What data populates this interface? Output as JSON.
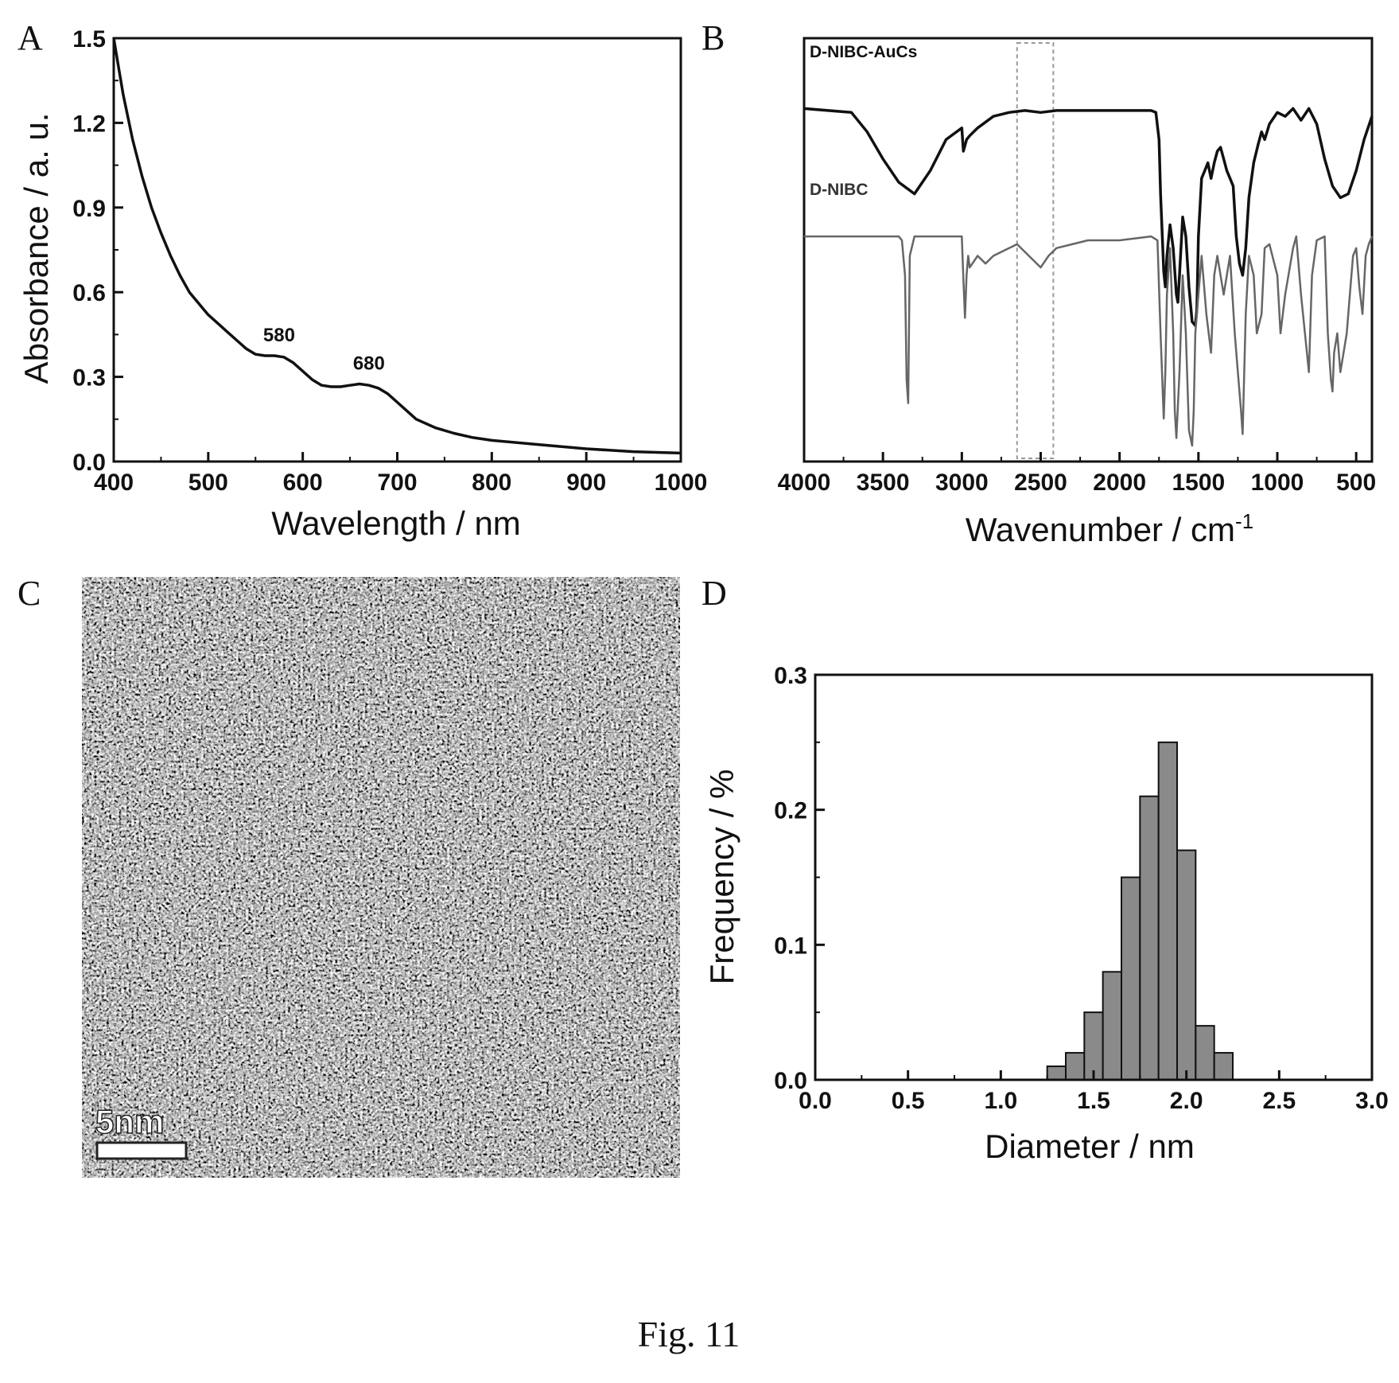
{
  "caption": "Fig. 11",
  "chart_data": [
    {
      "panel": "A",
      "type": "line",
      "xlabel": "Wavelength / nm",
      "ylabel": "Absorbance / a. u.",
      "xlim": [
        400,
        1000
      ],
      "ylim": [
        0.0,
        1.5
      ],
      "xticks": [
        400,
        500,
        600,
        700,
        800,
        900,
        1000
      ],
      "yticks": [
        0.0,
        0.3,
        0.6,
        0.9,
        1.2,
        1.5
      ],
      "ytick_labels": [
        "0.0",
        "0.3",
        "0.6",
        "0.9",
        "1.2",
        "1.5"
      ],
      "grid": false,
      "annotations": [
        {
          "text": "580",
          "x": 575,
          "y": 0.38
        },
        {
          "text": "680",
          "x": 670,
          "y": 0.28
        }
      ],
      "series": [
        {
          "x": [
            400,
            405,
            410,
            420,
            430,
            440,
            450,
            460,
            470,
            480,
            490,
            500,
            510,
            520,
            530,
            540,
            550,
            560,
            570,
            580,
            590,
            600,
            610,
            620,
            630,
            640,
            650,
            660,
            670,
            680,
            690,
            700,
            710,
            720,
            740,
            760,
            780,
            800,
            850,
            900,
            950,
            1000
          ],
          "y": [
            1.5,
            1.4,
            1.3,
            1.14,
            1.01,
            0.9,
            0.81,
            0.73,
            0.66,
            0.6,
            0.56,
            0.52,
            0.49,
            0.46,
            0.43,
            0.4,
            0.38,
            0.375,
            0.375,
            0.37,
            0.35,
            0.32,
            0.29,
            0.27,
            0.265,
            0.265,
            0.27,
            0.275,
            0.27,
            0.26,
            0.24,
            0.21,
            0.18,
            0.15,
            0.12,
            0.1,
            0.085,
            0.075,
            0.06,
            0.045,
            0.035,
            0.03
          ]
        }
      ]
    },
    {
      "panel": "B",
      "type": "line",
      "xlabel": "Wavenumber / cm",
      "xlabel_sup": "-1",
      "xlim": [
        4000,
        400
      ],
      "xticks": [
        4000,
        3500,
        3000,
        2500,
        2000,
        1500,
        1000,
        500
      ],
      "grid": false,
      "highlight_region": [
        2650,
        2420
      ],
      "series": [
        {
          "name": "D-NIBC-AuCs",
          "color": "#111111",
          "x": [
            4000,
            3700,
            3600,
            3500,
            3400,
            3300,
            3200,
            3100,
            3000,
            2990,
            2970,
            2950,
            2900,
            2800,
            2700,
            2600,
            2500,
            2400,
            2000,
            1800,
            1770,
            1750,
            1740,
            1720,
            1710,
            1700,
            1680,
            1660,
            1640,
            1630,
            1620,
            1600,
            1580,
            1560,
            1540,
            1520,
            1510,
            1500,
            1480,
            1460,
            1440,
            1420,
            1400,
            1380,
            1360,
            1340,
            1320,
            1300,
            1280,
            1260,
            1240,
            1220,
            1200,
            1180,
            1150,
            1120,
            1100,
            1080,
            1050,
            1000,
            950,
            900,
            850,
            800,
            750,
            700,
            650,
            600,
            550,
            500,
            450,
            400
          ],
          "y": [
            0.88,
            0.87,
            0.82,
            0.75,
            0.69,
            0.66,
            0.72,
            0.8,
            0.83,
            0.77,
            0.8,
            0.81,
            0.83,
            0.86,
            0.87,
            0.875,
            0.87,
            0.875,
            0.875,
            0.875,
            0.87,
            0.8,
            0.66,
            0.46,
            0.42,
            0.5,
            0.58,
            0.52,
            0.4,
            0.38,
            0.45,
            0.6,
            0.55,
            0.42,
            0.33,
            0.32,
            0.36,
            0.55,
            0.7,
            0.72,
            0.74,
            0.7,
            0.74,
            0.77,
            0.78,
            0.75,
            0.72,
            0.7,
            0.68,
            0.55,
            0.48,
            0.45,
            0.52,
            0.65,
            0.74,
            0.79,
            0.82,
            0.8,
            0.84,
            0.87,
            0.86,
            0.88,
            0.85,
            0.88,
            0.84,
            0.75,
            0.68,
            0.65,
            0.66,
            0.72,
            0.8,
            0.86
          ]
        },
        {
          "name": "D-NIBC",
          "color": "#666666",
          "x": [
            4000,
            3700,
            3500,
            3400,
            3380,
            3360,
            3350,
            3340,
            3330,
            3300,
            3100,
            3000,
            2990,
            2980,
            2970,
            2960,
            2950,
            2900,
            2850,
            2800,
            2750,
            2700,
            2650,
            2600,
            2550,
            2500,
            2450,
            2400,
            2300,
            2200,
            2000,
            1800,
            1760,
            1740,
            1720,
            1710,
            1700,
            1680,
            1660,
            1650,
            1640,
            1620,
            1600,
            1580,
            1560,
            1540,
            1530,
            1520,
            1500,
            1480,
            1450,
            1420,
            1400,
            1380,
            1360,
            1340,
            1300,
            1270,
            1250,
            1230,
            1220,
            1200,
            1180,
            1150,
            1130,
            1100,
            1080,
            1050,
            1000,
            980,
            950,
            900,
            880,
            850,
            800,
            780,
            750,
            700,
            680,
            660,
            650,
            640,
            620,
            600,
            580,
            560,
            540,
            520,
            500,
            480,
            460,
            440,
            420,
            400
          ],
          "y": [
            0.55,
            0.55,
            0.55,
            0.55,
            0.54,
            0.45,
            0.18,
            0.12,
            0.5,
            0.55,
            0.55,
            0.55,
            0.44,
            0.34,
            0.45,
            0.5,
            0.47,
            0.5,
            0.48,
            0.5,
            0.51,
            0.52,
            0.53,
            0.51,
            0.49,
            0.47,
            0.5,
            0.52,
            0.53,
            0.54,
            0.54,
            0.55,
            0.54,
            0.3,
            0.08,
            0.2,
            0.4,
            0.52,
            0.3,
            0.1,
            0.03,
            0.2,
            0.45,
            0.3,
            0.05,
            0.01,
            0.1,
            0.3,
            0.4,
            0.5,
            0.35,
            0.25,
            0.45,
            0.5,
            0.45,
            0.4,
            0.5,
            0.3,
            0.2,
            0.1,
            0.04,
            0.35,
            0.5,
            0.45,
            0.3,
            0.35,
            0.52,
            0.53,
            0.45,
            0.3,
            0.4,
            0.52,
            0.55,
            0.4,
            0.2,
            0.45,
            0.54,
            0.55,
            0.3,
            0.18,
            0.15,
            0.25,
            0.3,
            0.2,
            0.25,
            0.3,
            0.4,
            0.5,
            0.52,
            0.42,
            0.35,
            0.5,
            0.53,
            0.55
          ]
        }
      ]
    },
    {
      "panel": "C",
      "type": "image",
      "scale_bar_label": "5nm"
    },
    {
      "panel": "D",
      "type": "bar",
      "xlabel": "Diameter / nm",
      "ylabel": "Frequency / %",
      "xlim": [
        0.0,
        3.0
      ],
      "ylim": [
        0.0,
        0.3
      ],
      "xticks": [
        0.0,
        0.5,
        1.0,
        1.5,
        2.0,
        2.5,
        3.0
      ],
      "xtick_labels": [
        "0.0",
        "0.5",
        "1.0",
        "1.5",
        "2.0",
        "2.5",
        "3.0"
      ],
      "yticks": [
        0.0,
        0.1,
        0.2,
        0.3
      ],
      "ytick_labels": [
        "0.0",
        "0.1",
        "0.2",
        "0.3"
      ],
      "bin_width": 0.1,
      "grid": false,
      "color": "#8a8a8a",
      "categories": [
        1.3,
        1.4,
        1.5,
        1.6,
        1.7,
        1.8,
        1.9,
        2.0,
        2.1,
        2.2
      ],
      "values": [
        0.01,
        0.02,
        0.05,
        0.08,
        0.15,
        0.21,
        0.25,
        0.17,
        0.04,
        0.02
      ]
    }
  ]
}
